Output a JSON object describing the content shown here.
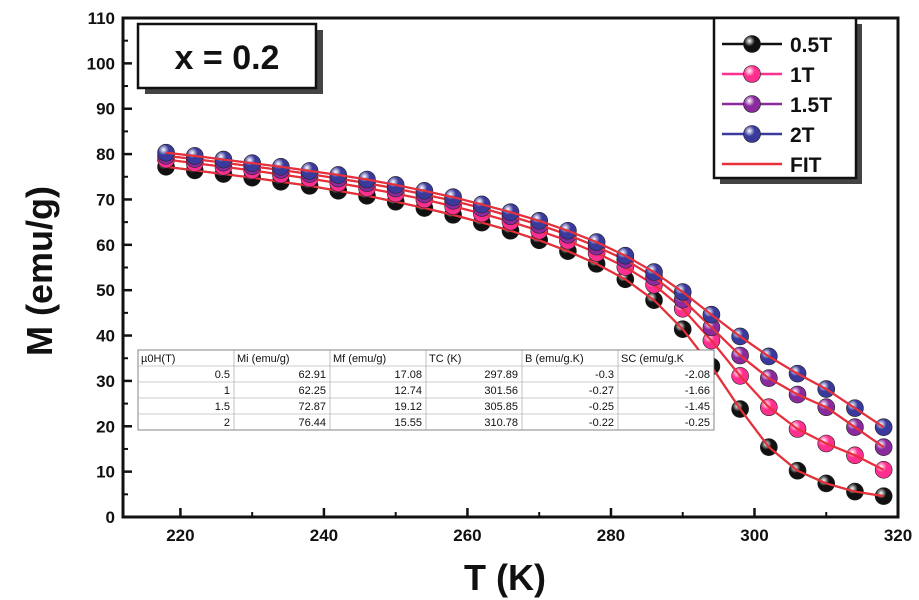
{
  "chart_data": {
    "type": "line",
    "annotation": "x = 0.2",
    "xlabel": "T (K)",
    "ylabel": "M (emu/g)",
    "xlim": [
      212,
      320
    ],
    "ylim": [
      0,
      110
    ],
    "xticks": [
      220,
      240,
      260,
      280,
      300,
      320
    ],
    "yticks": [
      0,
      10,
      20,
      30,
      40,
      50,
      60,
      70,
      80,
      90,
      100,
      110
    ],
    "grid": false,
    "legend_position": "top-right",
    "x": [
      218,
      222,
      226,
      230,
      234,
      238,
      242,
      246,
      250,
      254,
      258,
      262,
      266,
      270,
      274,
      278,
      282,
      286,
      290,
      294,
      298,
      302,
      306,
      310,
      314,
      318
    ],
    "series": [
      {
        "name": "0.5T",
        "color": "#111111",
        "values": [
          77.2,
          76.4,
          75.6,
          74.8,
          73.9,
          73.0,
          71.9,
          70.8,
          69.5,
          68.1,
          66.6,
          64.9,
          63.1,
          61.0,
          58.6,
          55.8,
          52.4,
          47.8,
          41.4,
          33.2,
          23.8,
          15.4,
          10.2,
          7.4,
          5.6,
          4.6
        ]
      },
      {
        "name": "1T",
        "color": "#ff2f8f",
        "values": [
          78.8,
          78.0,
          77.2,
          76.4,
          75.5,
          74.6,
          73.6,
          72.5,
          71.3,
          70.0,
          68.5,
          66.9,
          65.1,
          63.1,
          60.9,
          58.2,
          55.1,
          51.2,
          45.9,
          38.9,
          31.1,
          24.2,
          19.4,
          16.2,
          13.6,
          10.4
        ]
      },
      {
        "name": "1.5T",
        "color": "#8a2a9c",
        "values": [
          79.6,
          78.9,
          78.1,
          77.3,
          76.5,
          75.6,
          74.6,
          73.6,
          72.4,
          71.1,
          69.7,
          68.1,
          66.3,
          64.4,
          62.2,
          59.6,
          56.7,
          52.9,
          47.9,
          41.8,
          35.6,
          30.6,
          27.0,
          24.2,
          19.8,
          15.4
        ]
      },
      {
        "name": "2T",
        "color": "#3a3a9c",
        "values": [
          80.3,
          79.6,
          78.8,
          78.0,
          77.2,
          76.3,
          75.4,
          74.4,
          73.2,
          71.9,
          70.5,
          68.9,
          67.2,
          65.3,
          63.1,
          60.6,
          57.6,
          54.0,
          49.6,
          44.6,
          39.8,
          35.4,
          31.6,
          28.2,
          24.0,
          19.8
        ]
      }
    ],
    "fit_label": "FIT",
    "fit_color": "#e8303a",
    "table": {
      "headers": [
        "µ0H(T)",
        "Mi (emu/g)",
        "Mf (emu/g)",
        "TC (K)",
        "B (emu/g.K)",
        "SC (emu/g.K"
      ],
      "rows": [
        [
          "0.5",
          "62.91",
          "17.08",
          "297.89",
          "-0.3",
          "-2.08"
        ],
        [
          "1",
          "62.25",
          "12.74",
          "301.56",
          "-0.27",
          "-1.66"
        ],
        [
          "1.5",
          "72.87",
          "19.12",
          "305.85",
          "-0.25",
          "-1.45"
        ],
        [
          "2",
          "76.44",
          "15.55",
          "310.78",
          "-0.22",
          "-0.25"
        ]
      ]
    }
  }
}
